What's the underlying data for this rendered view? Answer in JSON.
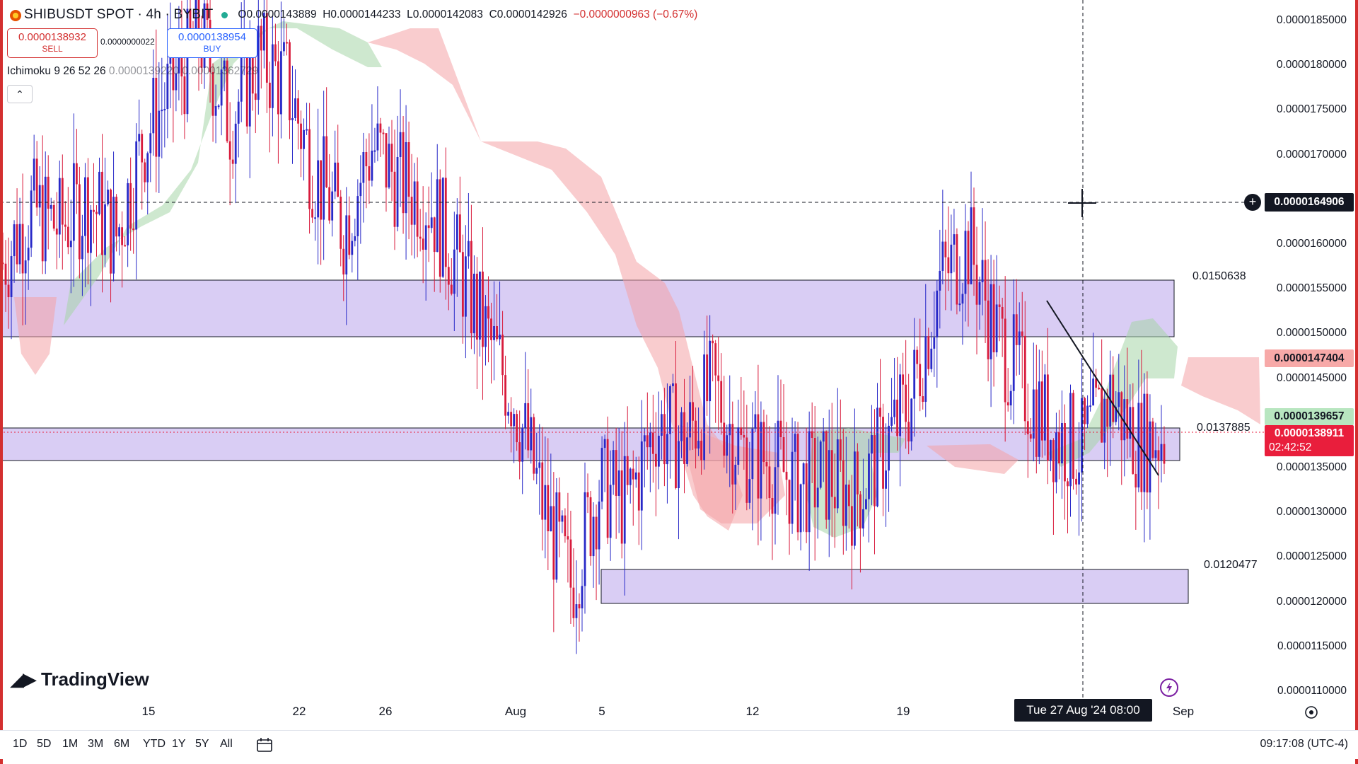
{
  "header": {
    "symbol": "SHIBUSDT SPOT · 4h · BYBIT",
    "open": "O0.0000143889",
    "high": "H0.0000144233",
    "low": "L0.0000142083",
    "close": "C0.0000142926",
    "change": "−0.0000000963 (−0.67%)"
  },
  "trade": {
    "sell_price": "0.0000138932",
    "sell_label": "SELL",
    "spread": "0.0000000022",
    "buy_price": "0.0000138954",
    "buy_label": "BUY"
  },
  "indicator": {
    "name": "Ichimoku 9 26 52 26",
    "v1": "0.0000139220",
    "v2": "0.00001362729"
  },
  "brand": "TradingView",
  "price_axis": [
    "0.0000185000",
    "0.0000180000",
    "0.0000175000",
    "0.0000170000",
    "0.0000165000",
    "0.0000160000",
    "0.0000155000",
    "0.0000150000",
    "0.0000145000",
    "0.0000135000",
    "0.0000130000",
    "0.0000125000",
    "0.0000120000",
    "0.0000115000",
    "0.0000110000"
  ],
  "tags": {
    "crosshair_price": "0.0000164906",
    "pink": "0.0000147404",
    "green": "0.0000139657",
    "current": "0.0000138911",
    "countdown": "02:42:52"
  },
  "zones": {
    "upper": "0.0150638",
    "middle": "0.0137885",
    "lower": "0.0120477"
  },
  "time_axis": [
    "15",
    "22",
    "26",
    "Aug",
    "5",
    "12",
    "19",
    "Sep"
  ],
  "crosshair_time": "Tue 27 Aug '24   08:00",
  "timeframes": [
    "1D",
    "5D",
    "1M",
    "3M",
    "6M",
    "YTD",
    "1Y",
    "5Y",
    "All"
  ],
  "clock": "09:17:08 (UTC-4)",
  "colors": {
    "up": "#2829c8",
    "down": "#d81b3c",
    "zone": "#d9cdf4",
    "cloud_green": "#a5d6a7",
    "cloud_red": "#f4a3a6"
  },
  "chart_data": {
    "type": "candlestick",
    "symbol": "SHIBUSDT",
    "interval": "4h",
    "y_range": [
      1.08e-05,
      1.87e-05
    ],
    "x_labels": [
      "15",
      "22",
      "26",
      "Aug",
      "5",
      "12",
      "19",
      "Sep"
    ],
    "zones": [
      {
        "label": "0.0150638",
        "top": 1.55e-05,
        "bottom": 1.495e-05
      },
      {
        "label": "0.0137885",
        "top": 1.39e-05,
        "bottom": 1.36e-05
      },
      {
        "label": "0.0120477",
        "top": 1.24e-05,
        "bottom": 1.2e-05
      }
    ],
    "close_path": [
      1.58e-05,
      1.64e-05,
      1.62e-05,
      1.65e-05,
      1.61e-05,
      1.72e-05,
      1.78e-05,
      1.83e-05,
      1.74e-05,
      1.81e-05,
      1.78e-05,
      1.68e-05,
      1.62e-05,
      1.71e-05,
      1.67e-05,
      1.65e-05,
      1.58e-05,
      1.5e-05,
      1.43e-05,
      1.31e-05,
      1.22e-05,
      1.33e-05,
      1.31e-05,
      1.4e-05,
      1.38e-05,
      1.44e-05,
      1.37e-05,
      1.36e-05,
      1.33e-05,
      1.34e-05,
      1.32e-05,
      1.37e-05,
      1.43e-05,
      1.56e-05,
      1.6e-05,
      1.5e-05,
      1.44e-05,
      1.39e-05,
      1.37e-05,
      1.43e-05,
      1.38e-05,
      1.389e-05
    ]
  }
}
